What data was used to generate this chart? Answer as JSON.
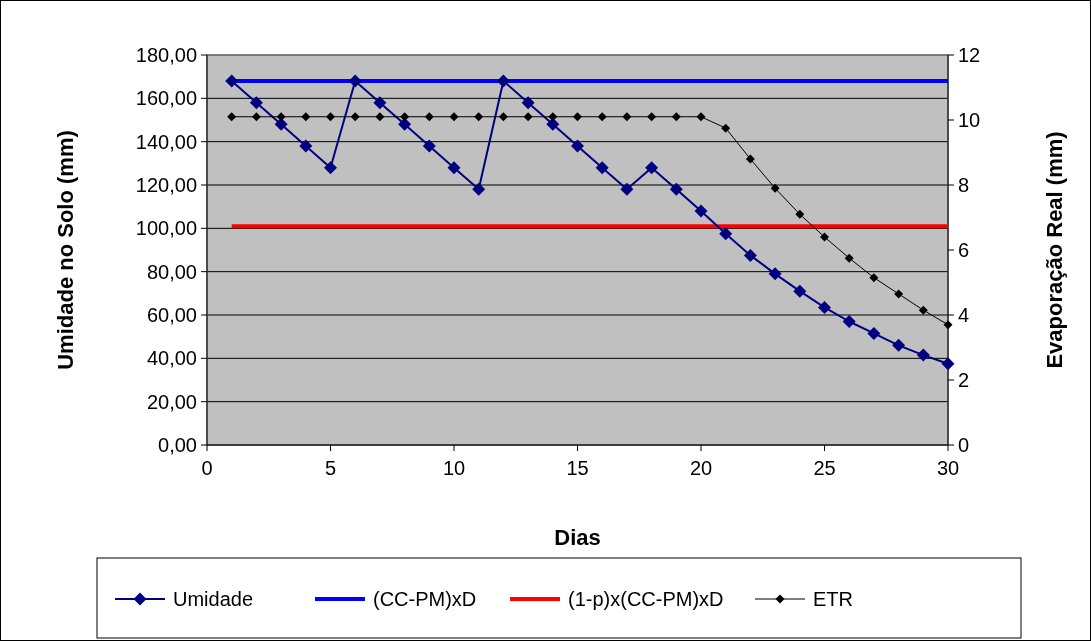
{
  "chart_data": {
    "type": "line",
    "xlabel": "Dias",
    "ylabel": "Umidade no Solo (mm)",
    "y2label": "Evaporação Real (mm)",
    "x": [
      1,
      2,
      3,
      4,
      5,
      6,
      7,
      8,
      9,
      10,
      11,
      12,
      13,
      14,
      15,
      16,
      17,
      18,
      19,
      20,
      21,
      22,
      23,
      24,
      25,
      26,
      27,
      28,
      29,
      30
    ],
    "xlim": [
      0,
      30
    ],
    "xticks": [
      0,
      5,
      10,
      15,
      20,
      25,
      30
    ],
    "ylim": [
      0,
      180
    ],
    "yticks": [
      {
        "value": 0,
        "label": "0,00"
      },
      {
        "value": 20,
        "label": "20,00"
      },
      {
        "value": 40,
        "label": "40,00"
      },
      {
        "value": 60,
        "label": "60,00"
      },
      {
        "value": 80,
        "label": "80,00"
      },
      {
        "value": 100,
        "label": "100,00"
      },
      {
        "value": 120,
        "label": "120,00"
      },
      {
        "value": 140,
        "label": "140,00"
      },
      {
        "value": 160,
        "label": "160,00"
      },
      {
        "value": 180,
        "label": "180,00"
      }
    ],
    "y2lim": [
      0,
      12
    ],
    "y2ticks": [
      0,
      2,
      4,
      6,
      8,
      10,
      12
    ],
    "grid": "y",
    "legend": "bottom",
    "series": [
      {
        "name": "Umidade",
        "color": "#000080",
        "marker": "diamond",
        "values": [
          168,
          158,
          148,
          138,
          128,
          168,
          158,
          148,
          138,
          128,
          118,
          168,
          158,
          148,
          138,
          128,
          118,
          128,
          118,
          108,
          97.5,
          87.5,
          79,
          71,
          63.5,
          57,
          51.5,
          46,
          41.5,
          37.5
        ]
      },
      {
        "name": "(CC-PM)xD",
        "color": "#0000ff",
        "marker": "none",
        "values": [
          168,
          168,
          168,
          168,
          168,
          168,
          168,
          168,
          168,
          168,
          168,
          168,
          168,
          168,
          168,
          168,
          168,
          168,
          168,
          168,
          168,
          168,
          168,
          168,
          168,
          168,
          168,
          168,
          168,
          168
        ]
      },
      {
        "name": "(1-p)x(CC-PM)xD",
        "color": "#ff0000",
        "marker": "none",
        "values": [
          101,
          101,
          101,
          101,
          101,
          101,
          101,
          101,
          101,
          101,
          101,
          101,
          101,
          101,
          101,
          101,
          101,
          101,
          101,
          101,
          101,
          101,
          101,
          101,
          101,
          101,
          101,
          101,
          101,
          101
        ]
      },
      {
        "name": "ETR",
        "color": "#000000",
        "marker": "diamond",
        "axis": "y2",
        "values": [
          10.1,
          10.1,
          10.1,
          10.1,
          10.1,
          10.1,
          10.1,
          10.1,
          10.1,
          10.1,
          10.1,
          10.1,
          10.1,
          10.1,
          10.1,
          10.1,
          10.1,
          10.1,
          10.1,
          10.1,
          9.75,
          8.8,
          7.9,
          7.1,
          6.4,
          5.75,
          5.15,
          4.65,
          4.15,
          3.7
        ]
      }
    ]
  }
}
